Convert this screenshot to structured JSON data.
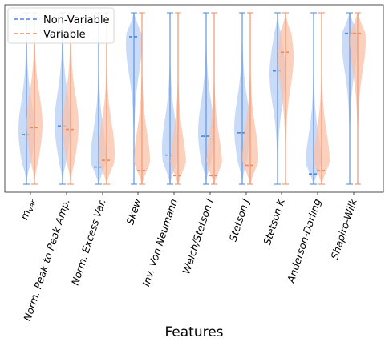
{
  "chart_data": {
    "type": "violin",
    "title": "",
    "xlabel": "Features",
    "ylabel": "",
    "ylim": [
      0,
      1
    ],
    "grid": false,
    "legend_position": "top-left",
    "categories": [
      {
        "label": "m",
        "sub": "var"
      },
      {
        "label": "Norm. Peak to Peak Amp."
      },
      {
        "label": "Norm. Excess Var."
      },
      {
        "label": "Skew"
      },
      {
        "label": "Inv. Von Neumann"
      },
      {
        "label": "Welch/Stetson I"
      },
      {
        "label": "Stetson J"
      },
      {
        "label": "Stetson K"
      },
      {
        "label": "Anderson-Darling"
      },
      {
        "label": "Shapiro-Wilk"
      }
    ],
    "series": [
      {
        "name": "Non-Variable",
        "color": "#4a86e0",
        "fill": "#b8cff5",
        "medians": [
          0.29,
          0.34,
          0.1,
          0.86,
          0.17,
          0.28,
          0.3,
          0.66,
          0.06,
          0.88
        ]
      },
      {
        "name": "Variable",
        "color": "#f08a5d",
        "fill": "#f9c2a8",
        "medians": [
          0.33,
          0.32,
          0.14,
          0.08,
          0.05,
          0.05,
          0.11,
          0.77,
          0.08,
          0.88
        ]
      }
    ]
  }
}
